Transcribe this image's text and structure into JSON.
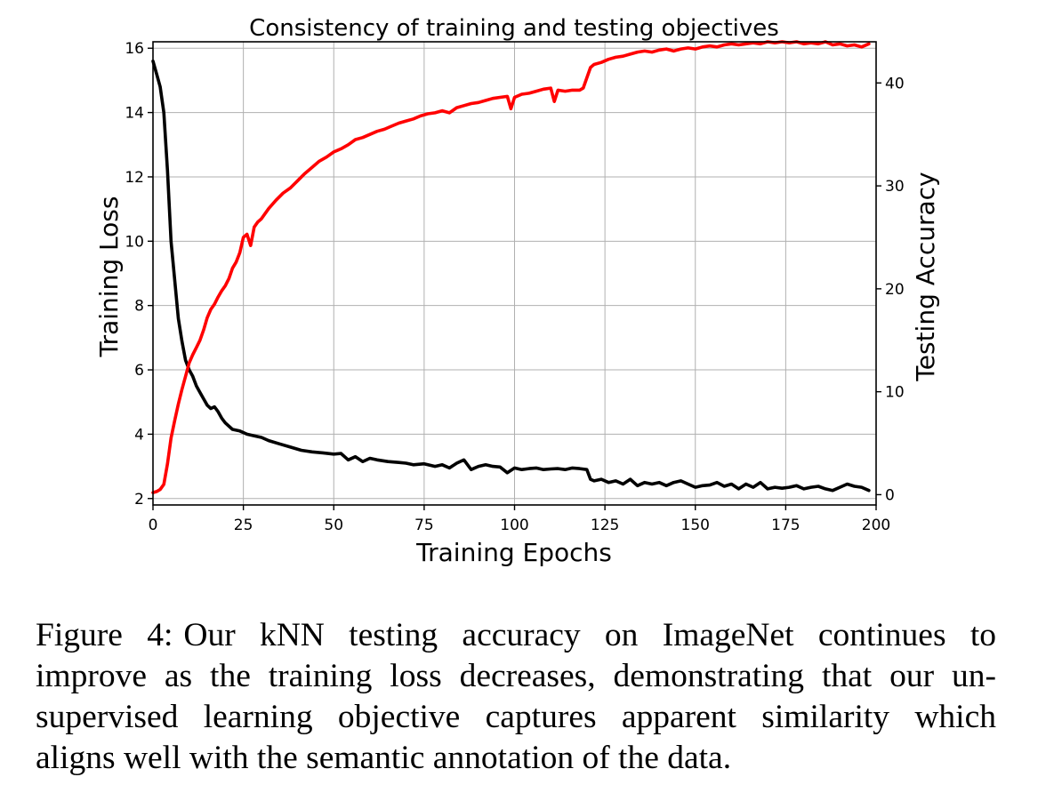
{
  "chart_data": {
    "type": "line",
    "title": "Consistency of training and testing objectives",
    "xlabel": "Training Epochs",
    "ylabel_left": "Training Loss",
    "ylabel_right": "Testing Accuracy",
    "xlim": [
      0,
      200
    ],
    "ylim_left": [
      1.8,
      16.2
    ],
    "ylim_right": [
      -1.0,
      44.0
    ],
    "xticks": [
      0,
      25,
      50,
      75,
      100,
      125,
      150,
      175,
      200
    ],
    "yticks_left": [
      2,
      4,
      6,
      8,
      10,
      12,
      14,
      16
    ],
    "yticks_right": [
      0,
      10,
      20,
      30,
      40
    ],
    "grid": true,
    "series": [
      {
        "axis": "left",
        "color": "#000000",
        "points": [
          [
            0,
            15.6
          ],
          [
            1,
            15.2
          ],
          [
            2,
            14.8
          ],
          [
            3,
            14.0
          ],
          [
            4,
            12.2
          ],
          [
            5,
            10.0
          ],
          [
            6,
            8.8
          ],
          [
            7,
            7.6
          ],
          [
            8,
            6.9
          ],
          [
            9,
            6.3
          ],
          [
            10,
            6.0
          ],
          [
            11,
            5.8
          ],
          [
            12,
            5.5
          ],
          [
            13,
            5.3
          ],
          [
            14,
            5.1
          ],
          [
            15,
            4.9
          ],
          [
            16,
            4.8
          ],
          [
            17,
            4.85
          ],
          [
            18,
            4.7
          ],
          [
            19,
            4.5
          ],
          [
            20,
            4.35
          ],
          [
            22,
            4.15
          ],
          [
            24,
            4.1
          ],
          [
            26,
            4.0
          ],
          [
            28,
            3.95
          ],
          [
            30,
            3.9
          ],
          [
            32,
            3.8
          ],
          [
            35,
            3.7
          ],
          [
            38,
            3.6
          ],
          [
            41,
            3.5
          ],
          [
            44,
            3.45
          ],
          [
            47,
            3.42
          ],
          [
            50,
            3.38
          ],
          [
            52,
            3.4
          ],
          [
            54,
            3.2
          ],
          [
            56,
            3.3
          ],
          [
            58,
            3.15
          ],
          [
            60,
            3.25
          ],
          [
            62,
            3.2
          ],
          [
            65,
            3.15
          ],
          [
            68,
            3.12
          ],
          [
            70,
            3.1
          ],
          [
            72,
            3.05
          ],
          [
            75,
            3.08
          ],
          [
            78,
            3.0
          ],
          [
            80,
            3.05
          ],
          [
            82,
            2.95
          ],
          [
            84,
            3.1
          ],
          [
            86,
            3.2
          ],
          [
            88,
            2.9
          ],
          [
            90,
            3.0
          ],
          [
            92,
            3.05
          ],
          [
            94,
            3.0
          ],
          [
            96,
            2.98
          ],
          [
            98,
            2.8
          ],
          [
            100,
            2.95
          ],
          [
            102,
            2.9
          ],
          [
            104,
            2.93
          ],
          [
            106,
            2.95
          ],
          [
            108,
            2.9
          ],
          [
            110,
            2.92
          ],
          [
            112,
            2.93
          ],
          [
            114,
            2.9
          ],
          [
            116,
            2.95
          ],
          [
            118,
            2.93
          ],
          [
            120,
            2.9
          ],
          [
            121,
            2.6
          ],
          [
            122,
            2.55
          ],
          [
            124,
            2.6
          ],
          [
            126,
            2.5
          ],
          [
            128,
            2.55
          ],
          [
            130,
            2.45
          ],
          [
            132,
            2.6
          ],
          [
            134,
            2.4
          ],
          [
            136,
            2.5
          ],
          [
            138,
            2.45
          ],
          [
            140,
            2.5
          ],
          [
            142,
            2.4
          ],
          [
            144,
            2.5
          ],
          [
            146,
            2.55
          ],
          [
            148,
            2.45
          ],
          [
            150,
            2.35
          ],
          [
            152,
            2.4
          ],
          [
            154,
            2.42
          ],
          [
            156,
            2.5
          ],
          [
            158,
            2.38
          ],
          [
            160,
            2.45
          ],
          [
            162,
            2.3
          ],
          [
            164,
            2.45
          ],
          [
            166,
            2.35
          ],
          [
            168,
            2.5
          ],
          [
            170,
            2.3
          ],
          [
            172,
            2.35
          ],
          [
            174,
            2.32
          ],
          [
            176,
            2.35
          ],
          [
            178,
            2.4
          ],
          [
            180,
            2.3
          ],
          [
            182,
            2.35
          ],
          [
            184,
            2.38
          ],
          [
            186,
            2.3
          ],
          [
            188,
            2.25
          ],
          [
            190,
            2.35
          ],
          [
            192,
            2.45
          ],
          [
            194,
            2.38
          ],
          [
            196,
            2.35
          ],
          [
            198,
            2.25
          ]
        ]
      },
      {
        "axis": "right",
        "color": "#ff0000",
        "points": [
          [
            0,
            0.2
          ],
          [
            1,
            0.3
          ],
          [
            2,
            0.5
          ],
          [
            3,
            1.0
          ],
          [
            4,
            3.0
          ],
          [
            5,
            5.5
          ],
          [
            6,
            7.2
          ],
          [
            7,
            8.8
          ],
          [
            8,
            10.2
          ],
          [
            9,
            11.5
          ],
          [
            10,
            12.8
          ],
          [
            11,
            13.6
          ],
          [
            12,
            14.3
          ],
          [
            13,
            15.0
          ],
          [
            14,
            16.0
          ],
          [
            15,
            17.2
          ],
          [
            16,
            18.0
          ],
          [
            17,
            18.5
          ],
          [
            18,
            19.2
          ],
          [
            19,
            19.8
          ],
          [
            20,
            20.3
          ],
          [
            21,
            21.0
          ],
          [
            22,
            22.0
          ],
          [
            23,
            22.6
          ],
          [
            24,
            23.5
          ],
          [
            25,
            25.0
          ],
          [
            26,
            25.3
          ],
          [
            27,
            24.2
          ],
          [
            28,
            26.0
          ],
          [
            29,
            26.5
          ],
          [
            30,
            26.8
          ],
          [
            32,
            27.8
          ],
          [
            34,
            28.6
          ],
          [
            36,
            29.3
          ],
          [
            38,
            29.8
          ],
          [
            40,
            30.5
          ],
          [
            42,
            31.2
          ],
          [
            44,
            31.8
          ],
          [
            46,
            32.4
          ],
          [
            48,
            32.8
          ],
          [
            50,
            33.3
          ],
          [
            52,
            33.6
          ],
          [
            54,
            34.0
          ],
          [
            56,
            34.5
          ],
          [
            58,
            34.7
          ],
          [
            60,
            35.0
          ],
          [
            62,
            35.3
          ],
          [
            64,
            35.5
          ],
          [
            66,
            35.8
          ],
          [
            68,
            36.1
          ],
          [
            70,
            36.3
          ],
          [
            72,
            36.5
          ],
          [
            74,
            36.8
          ],
          [
            76,
            37.0
          ],
          [
            78,
            37.1
          ],
          [
            80,
            37.3
          ],
          [
            82,
            37.1
          ],
          [
            84,
            37.6
          ],
          [
            86,
            37.8
          ],
          [
            88,
            38.0
          ],
          [
            90,
            38.1
          ],
          [
            92,
            38.3
          ],
          [
            94,
            38.5
          ],
          [
            96,
            38.6
          ],
          [
            98,
            38.7
          ],
          [
            99,
            37.5
          ],
          [
            100,
            38.6
          ],
          [
            102,
            38.9
          ],
          [
            104,
            39.0
          ],
          [
            106,
            39.2
          ],
          [
            108,
            39.4
          ],
          [
            110,
            39.5
          ],
          [
            111,
            38.2
          ],
          [
            112,
            39.3
          ],
          [
            114,
            39.2
          ],
          [
            116,
            39.3
          ],
          [
            118,
            39.3
          ],
          [
            119,
            39.5
          ],
          [
            120,
            40.5
          ],
          [
            121,
            41.5
          ],
          [
            122,
            41.8
          ],
          [
            124,
            42.0
          ],
          [
            126,
            42.3
          ],
          [
            128,
            42.5
          ],
          [
            130,
            42.6
          ],
          [
            132,
            42.8
          ],
          [
            134,
            43.0
          ],
          [
            136,
            43.1
          ],
          [
            138,
            43.0
          ],
          [
            140,
            43.2
          ],
          [
            142,
            43.3
          ],
          [
            144,
            43.1
          ],
          [
            146,
            43.3
          ],
          [
            148,
            43.4
          ],
          [
            150,
            43.3
          ],
          [
            152,
            43.5
          ],
          [
            154,
            43.6
          ],
          [
            156,
            43.5
          ],
          [
            158,
            43.7
          ],
          [
            160,
            43.8
          ],
          [
            162,
            43.7
          ],
          [
            164,
            43.8
          ],
          [
            166,
            43.9
          ],
          [
            168,
            43.8
          ],
          [
            170,
            44.0
          ],
          [
            172,
            43.9
          ],
          [
            174,
            44.0
          ],
          [
            176,
            43.9
          ],
          [
            178,
            44.0
          ],
          [
            180,
            43.8
          ],
          [
            182,
            43.9
          ],
          [
            184,
            43.8
          ],
          [
            186,
            44.0
          ],
          [
            188,
            43.7
          ],
          [
            190,
            43.8
          ],
          [
            192,
            43.6
          ],
          [
            194,
            43.7
          ],
          [
            196,
            43.5
          ],
          [
            198,
            43.8
          ]
        ]
      }
    ]
  },
  "caption": {
    "label": "Figure 4:",
    "lines": [
      "Our kNN testing accuracy on ImageNet continues to",
      "improve as the training loss decreases, demonstrating that our un-",
      "supervised learning objective captures apparent similarity which",
      "aligns well with the semantic annotation of the data."
    ]
  }
}
